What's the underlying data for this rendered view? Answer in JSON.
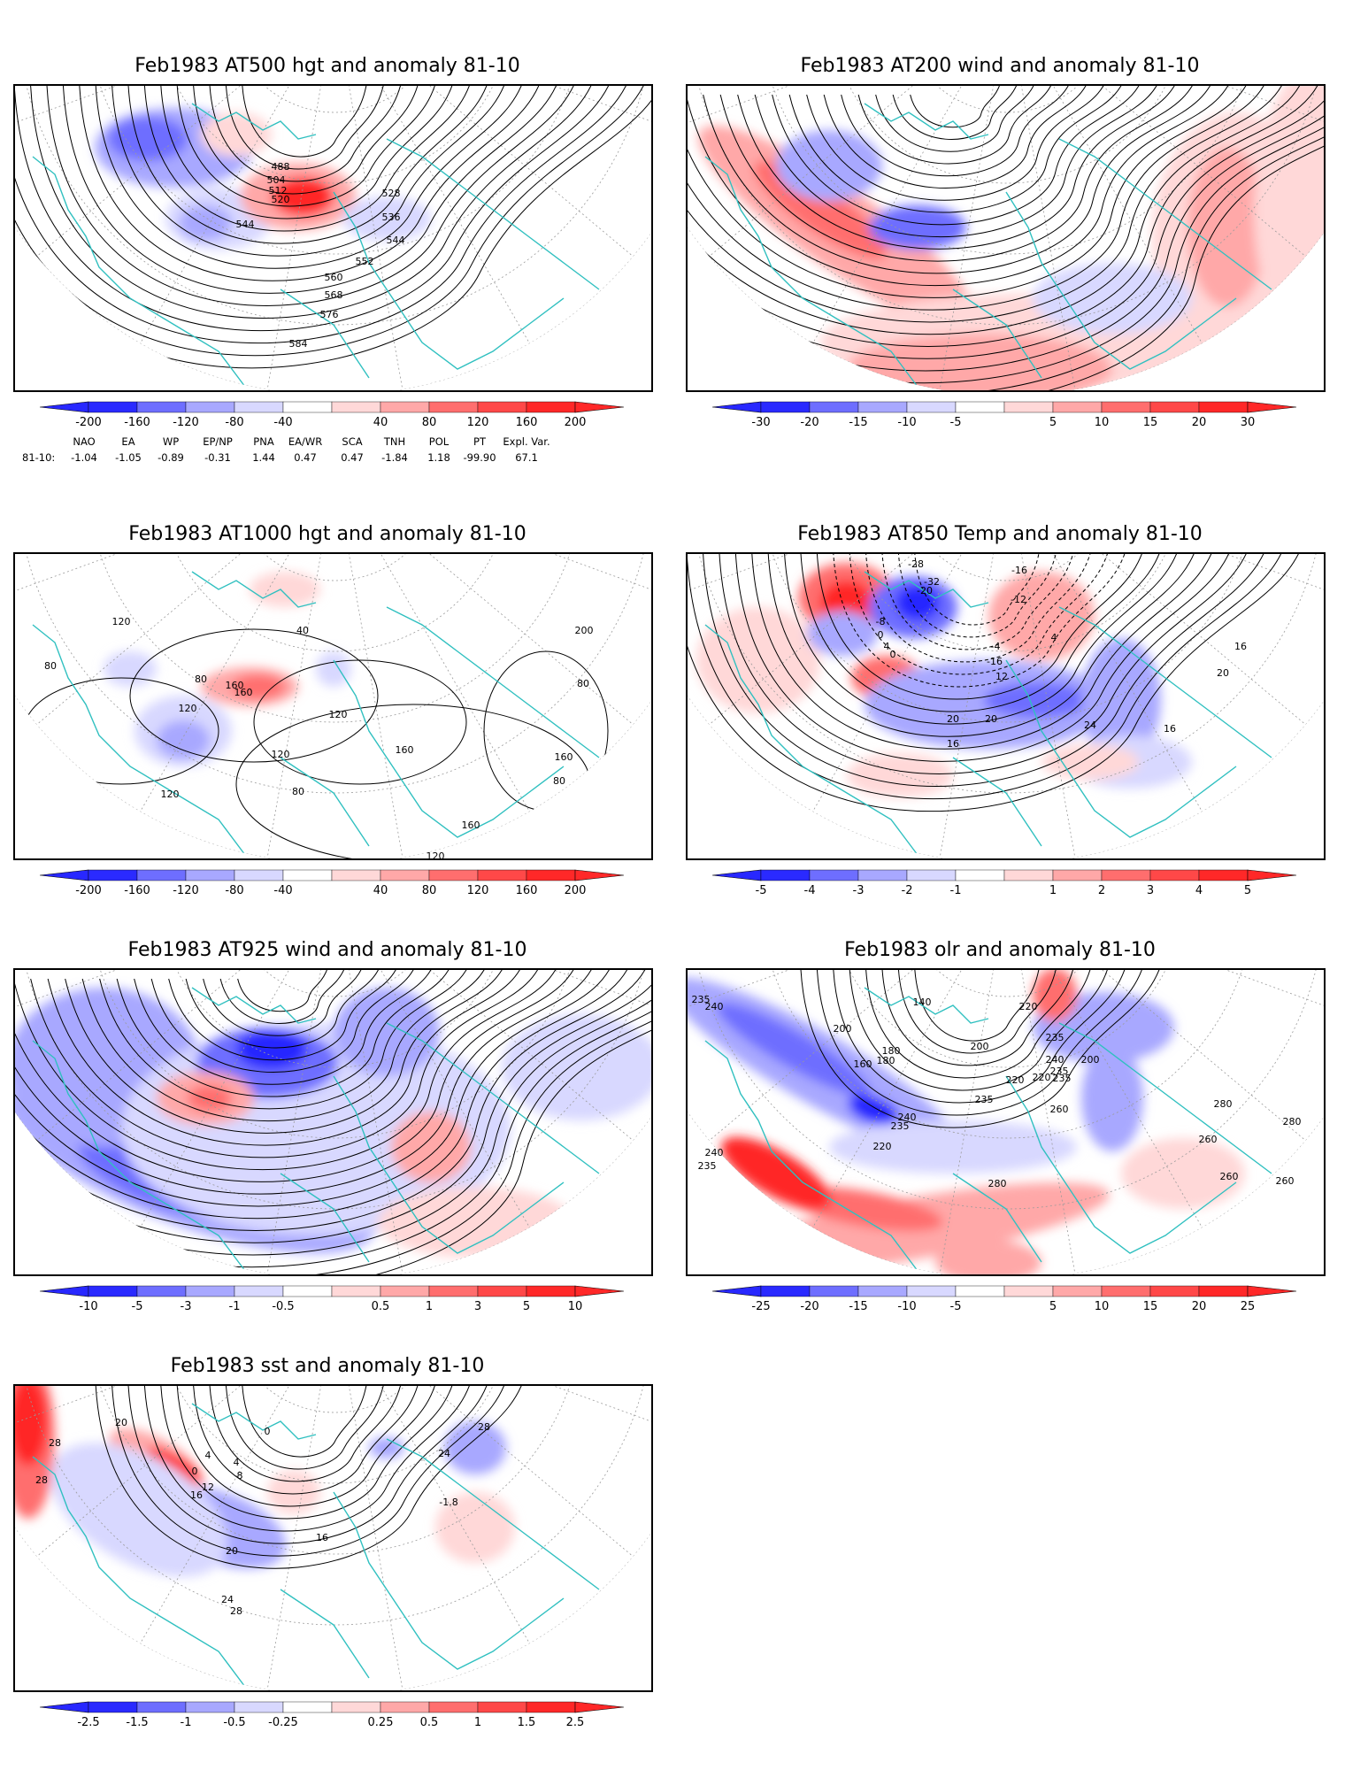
{
  "colors": {
    "neg3": "#2828ff",
    "neg2": "#6e6eff",
    "neg1": "#a8a8ff",
    "neg0": "#d8d8ff",
    "pos0": "#ffd8d8",
    "pos1": "#ffa8a8",
    "pos2": "#ff6e6e",
    "pos3": "#ff2828",
    "coast": "#30c0c0",
    "contour": "#000000",
    "grid": "#9a9a9a"
  },
  "panels": [
    {
      "title": "Feb1983 AT500 hgt and anomaly 81-10",
      "ticks": [
        "-200",
        "-160",
        "-120",
        "-80",
        "-40",
        "40",
        "80",
        "120",
        "160",
        "200"
      ],
      "labels": [
        "488",
        "504",
        "512",
        "520",
        "528",
        "536",
        "544",
        "544",
        "552",
        "560",
        "568",
        "576",
        "584"
      ]
    },
    {
      "title": "Feb1983 AT200 wind and anomaly 81-10",
      "ticks": [
        "-30",
        "-20",
        "-15",
        "-10",
        "-5",
        "5",
        "10",
        "15",
        "20",
        "30"
      ],
      "labels": []
    },
    {
      "title": "Feb1983 AT1000 hgt and anomaly 81-10",
      "ticks": [
        "-200",
        "-160",
        "-120",
        "-80",
        "-40",
        "40",
        "80",
        "120",
        "160",
        "200"
      ],
      "labels": [
        "120",
        "40",
        "200",
        "80",
        "80",
        "160",
        "160",
        "120",
        "120",
        "80",
        "120",
        "160",
        "160",
        "120",
        "80",
        "80",
        "160",
        "120"
      ]
    },
    {
      "title": "Feb1983 AT850 Temp and anomaly 81-10",
      "ticks": [
        "-5",
        "-4",
        "-3",
        "-2",
        "-1",
        "1",
        "2",
        "3",
        "4",
        "5"
      ],
      "labels": [
        "-28",
        "-32",
        "-16",
        "-20",
        "-12",
        "-8",
        "0",
        "4",
        "-4",
        "0",
        "4",
        "-16",
        "12",
        "16",
        "20",
        "24",
        "20",
        "16",
        "16",
        "20"
      ]
    },
    {
      "title": "Feb1983 AT925 wind and anomaly 81-10",
      "ticks": [
        "-10",
        "-5",
        "-3",
        "-1",
        "-0.5",
        "0.5",
        "1",
        "3",
        "5",
        "10"
      ],
      "labels": []
    },
    {
      "title": "Feb1983 olr and anomaly 81-10",
      "ticks": [
        "-25",
        "-20",
        "-15",
        "-10",
        "-5",
        "5",
        "10",
        "15",
        "20",
        "25"
      ],
      "labels": [
        "235",
        "240",
        "200",
        "140",
        "180",
        "160",
        "180",
        "220",
        "235",
        "200",
        "240",
        "235",
        "235",
        "200",
        "220",
        "220",
        "235",
        "240",
        "235",
        "260",
        "280",
        "260",
        "280",
        "260",
        "240",
        "235",
        "220",
        "280",
        "260"
      ]
    },
    {
      "title": "Feb1983 sst and anomaly 81-10",
      "ticks": [
        "-2.5",
        "-1.5",
        "-1",
        "-0.5",
        "-0.25",
        "0.25",
        "0.5",
        "1",
        "1.5",
        "2.5"
      ],
      "labels": [
        "28",
        "28",
        "20",
        "0",
        "4",
        "0",
        "4",
        "8",
        "12",
        "16",
        "-1.8",
        "24",
        "16",
        "20",
        "24",
        "28",
        "28"
      ]
    }
  ],
  "indices": {
    "header": [
      "NAO",
      "EA",
      "WP",
      "EP/NP",
      "PNA",
      "EA/WR",
      "SCA",
      "TNH",
      "POL",
      "PT",
      "Expl. Var."
    ],
    "row_label": "81-10:",
    "values": [
      "-1.04",
      "-1.05",
      "-0.89",
      "-0.31",
      "1.44",
      "0.47",
      "0.47",
      "-1.84",
      "1.18",
      "-99.90",
      "67.1"
    ]
  }
}
